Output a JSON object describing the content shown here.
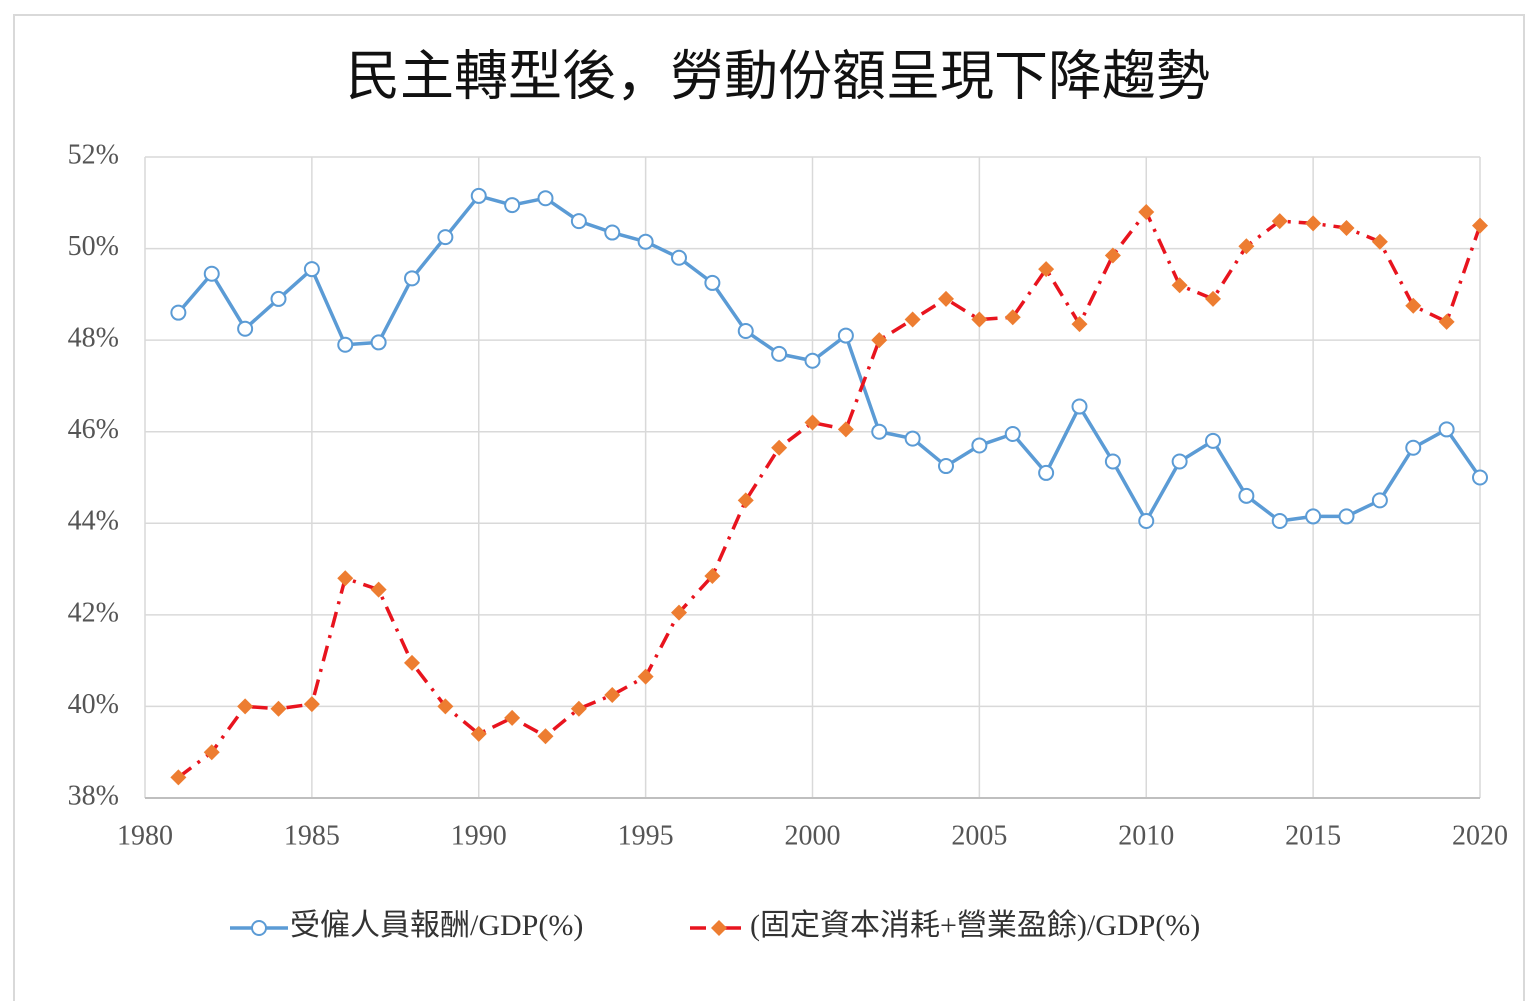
{
  "chart_data": {
    "type": "line",
    "title": "民主轉型後，勞動份額呈現下降趨勢",
    "x": [
      1981,
      1982,
      1983,
      1984,
      1985,
      1986,
      1987,
      1988,
      1989,
      1990,
      1991,
      1992,
      1993,
      1994,
      1995,
      1996,
      1997,
      1998,
      1999,
      2000,
      2001,
      2002,
      2003,
      2004,
      2005,
      2006,
      2007,
      2008,
      2009,
      2010,
      2011,
      2012,
      2013,
      2014,
      2015,
      2016,
      2017,
      2018,
      2019,
      2020
    ],
    "series": [
      {
        "name": "受僱人員報酬/GDP(%)",
        "color": "#5b9bd5",
        "marker": "circle",
        "dash": "solid",
        "values": [
          48.6,
          49.45,
          48.25,
          48.9,
          49.55,
          47.9,
          47.95,
          49.35,
          50.25,
          51.15,
          50.95,
          51.1,
          50.6,
          50.35,
          50.15,
          49.8,
          49.25,
          48.2,
          47.7,
          47.55,
          48.1,
          46.0,
          45.85,
          45.25,
          45.7,
          45.95,
          45.1,
          46.55,
          45.35,
          44.05,
          45.35,
          45.8,
          44.6,
          44.05,
          44.15,
          44.15,
          44.5,
          45.65,
          46.05,
          45.0
        ]
      },
      {
        "name": "(固定資本消耗+營業盈餘)/GDP(%)",
        "color": "#e8141e",
        "marker_color": "#ed7d31",
        "marker": "diamond",
        "dash": "dashdot",
        "values": [
          38.45,
          39.0,
          40.0,
          39.95,
          40.05,
          42.8,
          42.55,
          40.95,
          40.0,
          39.4,
          39.75,
          39.35,
          39.95,
          40.25,
          40.65,
          42.05,
          42.85,
          44.5,
          45.65,
          46.2,
          46.05,
          48.0,
          48.45,
          48.9,
          48.45,
          48.5,
          49.55,
          48.35,
          49.85,
          50.8,
          49.2,
          48.9,
          50.05,
          50.6,
          50.55,
          50.45,
          50.15,
          48.75,
          48.4,
          50.5
        ]
      }
    ],
    "xlim": [
      1980,
      2020
    ],
    "xticks": [
      1980,
      1985,
      1990,
      1995,
      2000,
      2005,
      2010,
      2015,
      2020
    ],
    "ylim": [
      38,
      52
    ],
    "yticks": [
      {
        "value": 38,
        "label": "38%"
      },
      {
        "value": 40,
        "label": "40%"
      },
      {
        "value": 42,
        "label": "42%"
      },
      {
        "value": 44,
        "label": "44%"
      },
      {
        "value": 46,
        "label": "46%"
      },
      {
        "value": 48,
        "label": "48%"
      },
      {
        "value": 50,
        "label": "50%"
      },
      {
        "value": 52,
        "label": "52%"
      }
    ],
    "grid": true,
    "legend": "bottom"
  }
}
